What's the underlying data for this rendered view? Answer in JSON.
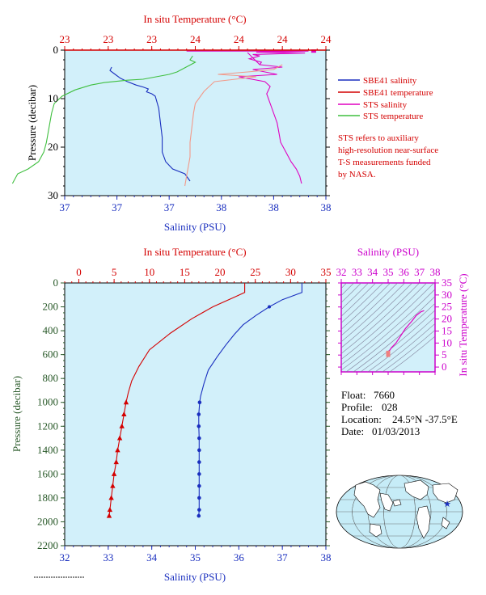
{
  "chart_data": [
    {
      "type": "line",
      "name": "top-profile",
      "title": "",
      "top_axis_label": "In situ Temperature (°C)",
      "top_ticks": [
        "23",
        "23",
        "23",
        "24",
        "24",
        "24",
        "24"
      ],
      "bottom_axis_label": "Salinity (PSU)",
      "bottom_ticks": [
        "37",
        "37",
        "37",
        "38",
        "38",
        "38"
      ],
      "ylabel": "Pressure (decibar)",
      "y_ticks": [
        "0",
        "10",
        "20",
        "30"
      ],
      "xlim_salinity": [
        36.5,
        38.0
      ],
      "xlim_temperature": [
        23.0,
        24.0
      ],
      "ylim": [
        0,
        30
      ],
      "legend": [
        {
          "name": "SBE41 salinity",
          "color": "#1a2fbf"
        },
        {
          "name": "SBE41 temperature",
          "color": "#d40000"
        },
        {
          "name": "STS salinity",
          "color": "#e000c0"
        },
        {
          "name": "STS temperature",
          "color": "#3fbf3f"
        }
      ],
      "note": [
        "STS refers to auxiliary",
        "high-resolution near-surface",
        "T-S measurements funded",
        "by NASA."
      ],
      "series": [
        {
          "name": "SBE41 salinity",
          "axis": "salinity",
          "color": "#1a2fbf",
          "points": [
            [
              36.77,
              3.5
            ],
            [
              36.76,
              4.2
            ],
            [
              36.79,
              5.0
            ],
            [
              36.82,
              5.8
            ],
            [
              36.86,
              6.5
            ],
            [
              36.91,
              7.2
            ],
            [
              36.95,
              7.6
            ],
            [
              36.98,
              8.0
            ],
            [
              36.97,
              8.6
            ],
            [
              37.0,
              9.0
            ],
            [
              37.02,
              9.5
            ],
            [
              37.04,
              12
            ],
            [
              37.05,
              15
            ],
            [
              37.06,
              18
            ],
            [
              37.06,
              21
            ],
            [
              37.08,
              23
            ],
            [
              37.12,
              24.5
            ],
            [
              37.19,
              25.5
            ],
            [
              37.22,
              27
            ]
          ]
        },
        {
          "name": "STS temperature",
          "axis": "temperature",
          "color": "#3fbf3f",
          "points": [
            [
              23.49,
              1.2
            ],
            [
              23.48,
              2.0
            ],
            [
              23.5,
              2.5
            ],
            [
              23.43,
              4.5
            ],
            [
              23.4,
              5.0
            ],
            [
              23.3,
              6.0
            ],
            [
              23.24,
              6.2
            ],
            [
              23.15,
              6.7
            ],
            [
              23.1,
              7.2
            ],
            [
              23.04,
              8.2
            ],
            [
              22.99,
              9.5
            ],
            [
              22.96,
              11
            ],
            [
              22.95,
              13
            ],
            [
              22.94,
              16
            ],
            [
              22.93,
              19
            ],
            [
              22.92,
              21
            ],
            [
              22.9,
              23
            ],
            [
              22.86,
              24.5
            ],
            [
              22.82,
              25.5
            ],
            [
              22.8,
              27.5
            ]
          ]
        },
        {
          "name": "STS salinity",
          "axis": "salinity",
          "color": "#e000c0",
          "points": [
            [
              37.55,
              0.5
            ],
            [
              37.62,
              3.0
            ],
            [
              37.75,
              3.5
            ],
            [
              37.58,
              4.0
            ],
            [
              37.72,
              5.0
            ],
            [
              37.5,
              5.5
            ],
            [
              37.65,
              6.5
            ],
            [
              37.68,
              7.5
            ],
            [
              37.66,
              9
            ],
            [
              37.68,
              11
            ],
            [
              37.7,
              13
            ],
            [
              37.72,
              15
            ],
            [
              37.73,
              17
            ],
            [
              37.74,
              19
            ],
            [
              37.77,
              21
            ],
            [
              37.8,
              23
            ],
            [
              37.83,
              24.5
            ],
            [
              37.85,
              26
            ],
            [
              37.86,
              27.5
            ]
          ]
        },
        {
          "name": "STS salinity (near-surface)",
          "axis": "salinity",
          "color": "#e000c0",
          "points": [
            [
              37.2,
              0.2
            ],
            [
              37.9,
              0.2
            ],
            [
              37.6,
              0.4
            ],
            [
              37.88,
              0.6
            ],
            [
              37.58,
              0.9
            ],
            [
              37.62,
              1.2
            ],
            [
              37.56,
              1.8
            ],
            [
              37.63,
              2.5
            ],
            [
              37.62,
              3.0
            ]
          ]
        },
        {
          "name": "STS temperature warm",
          "axis": "salinity",
          "color": "#f29a8a",
          "points": [
            [
              37.75,
              3.0
            ],
            [
              37.7,
              4.0
            ],
            [
              37.55,
              4.5
            ],
            [
              37.38,
              5.0
            ],
            [
              37.6,
              5.5
            ],
            [
              37.36,
              6.5
            ],
            [
              37.33,
              7.5
            ],
            [
              37.3,
              8.5
            ],
            [
              37.28,
              9.5
            ],
            [
              37.25,
              11
            ],
            [
              37.24,
              13
            ],
            [
              37.23,
              16
            ],
            [
              37.22,
              19
            ],
            [
              37.22,
              22
            ],
            [
              37.21,
              24
            ],
            [
              37.2,
              26
            ],
            [
              37.19,
              28
            ]
          ]
        },
        {
          "name": "SBE41 temperature",
          "axis": "temperature",
          "color": "#d40000",
          "points": [
            [
              23.0,
              0.1
            ],
            [
              24.0,
              0.1
            ]
          ]
        }
      ]
    },
    {
      "type": "line",
      "name": "bottom-profile",
      "title": "",
      "top_axis_label": "In situ Temperature (°C)",
      "top_ticks": [
        "0",
        "5",
        "10",
        "15",
        "20",
        "25",
        "30",
        "35"
      ],
      "bottom_axis_label": "Salinity (PSU)",
      "bottom_ticks": [
        "32",
        "33",
        "34",
        "35",
        "36",
        "37",
        "38"
      ],
      "ylabel": "Pressure (decibar)",
      "y_ticks": [
        "0",
        "200",
        "400",
        "600",
        "800",
        "1000",
        "1200",
        "1400",
        "1600",
        "1800",
        "2000",
        "2200"
      ],
      "xlim_salinity": [
        32,
        38
      ],
      "xlim_temperature": [
        -2,
        35
      ],
      "ylim": [
        0,
        2200
      ],
      "series": [
        {
          "name": "Temperature",
          "axis": "temperature",
          "color": "#d40000",
          "points": [
            [
              23.5,
              0
            ],
            [
              23.5,
              80
            ],
            [
              22,
              120
            ],
            [
              19,
              200
            ],
            [
              16,
              300
            ],
            [
              13,
              420
            ],
            [
              10,
              560
            ],
            [
              8.5,
              700
            ],
            [
              7.5,
              820
            ],
            [
              7.0,
              920
            ],
            [
              6.7,
              1000
            ],
            [
              6.4,
              1100
            ],
            [
              6.1,
              1200
            ],
            [
              5.8,
              1300
            ],
            [
              5.5,
              1400
            ],
            [
              5.3,
              1500
            ],
            [
              5.0,
              1600
            ],
            [
              4.8,
              1700
            ],
            [
              4.6,
              1800
            ],
            [
              4.4,
              1900
            ],
            [
              4.3,
              1950
            ]
          ]
        },
        {
          "name": "Salinity",
          "axis": "salinity",
          "color": "#1a2fbf",
          "points": [
            [
              37.45,
              0
            ],
            [
              37.45,
              80
            ],
            [
              37.0,
              140
            ],
            [
              36.7,
              200
            ],
            [
              36.4,
              270
            ],
            [
              36.1,
              350
            ],
            [
              35.9,
              430
            ],
            [
              35.7,
              520
            ],
            [
              35.5,
              620
            ],
            [
              35.3,
              730
            ],
            [
              35.2,
              840
            ],
            [
              35.12,
              950
            ],
            [
              35.1,
              1000
            ],
            [
              35.08,
              1100
            ],
            [
              35.08,
              1200
            ],
            [
              35.09,
              1300
            ],
            [
              35.09,
              1400
            ],
            [
              35.09,
              1500
            ],
            [
              35.09,
              1600
            ],
            [
              35.09,
              1700
            ],
            [
              35.09,
              1800
            ],
            [
              35.09,
              1900
            ],
            [
              35.08,
              1950
            ]
          ]
        }
      ]
    },
    {
      "type": "scatter",
      "name": "ts-diagram",
      "title": "",
      "top_axis_label": "Salinity (PSU)",
      "top_ticks": [
        "32",
        "33",
        "34",
        "35",
        "36",
        "37",
        "38"
      ],
      "right_axis_label": "In situ Temperature (°C)",
      "right_ticks": [
        "0",
        "5",
        "10",
        "15",
        "20",
        "25",
        "30",
        "35"
      ],
      "xlim": [
        32,
        38
      ],
      "ylim": [
        -2,
        35
      ],
      "points": [
        [
          35.05,
          4.3
        ],
        [
          35.06,
          5.5
        ],
        [
          35.08,
          6.7
        ],
        [
          35.2,
          8
        ],
        [
          35.5,
          10
        ],
        [
          35.8,
          13
        ],
        [
          36.1,
          16
        ],
        [
          36.5,
          19
        ],
        [
          36.8,
          21.5
        ],
        [
          37.1,
          23
        ],
        [
          37.3,
          23.5
        ]
      ]
    }
  ],
  "info": {
    "float_label": "Float:",
    "float_value": "7660",
    "profile_label": "Profile:",
    "profile_value": "028",
    "location_label": "Location:",
    "location_value": "24.5°N  -37.5°E",
    "date_label": "Date:",
    "date_value": "01/03/2013"
  },
  "colors": {
    "panel_bg": "#d2f0fa",
    "temperature_axis": "#d40000",
    "salinity_axis": "#1a2fbf",
    "pressure_axis": "#2a5a2a",
    "ts_axis": "#cc00cc"
  }
}
